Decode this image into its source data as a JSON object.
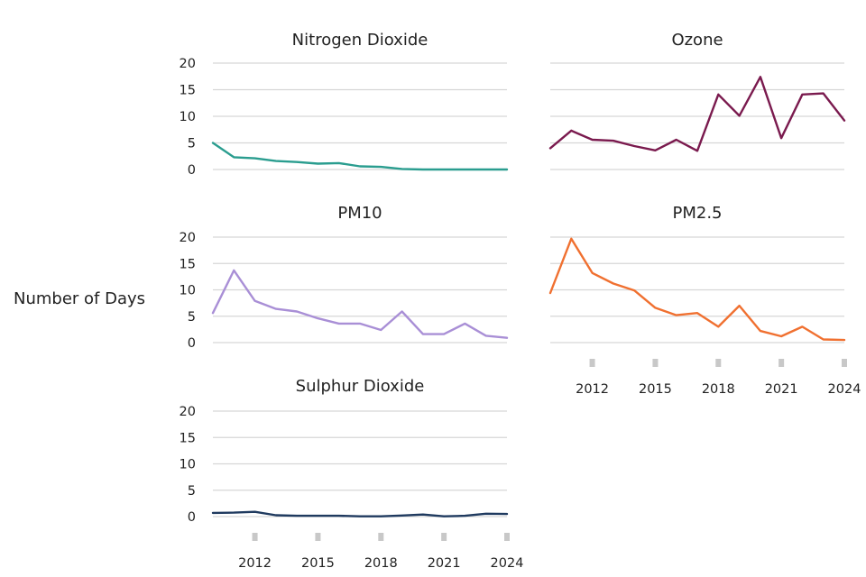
{
  "chart_data": {
    "type": "line",
    "ylabel": "Number of Days",
    "ylim": [
      0,
      20
    ],
    "yticks": [
      0,
      5,
      10,
      15,
      20
    ],
    "xlim": [
      2010,
      2024
    ],
    "xticks": [
      2012,
      2015,
      2018,
      2021,
      2024
    ],
    "grid": "horizontal",
    "x": [
      2010,
      2011,
      2012,
      2013,
      2014,
      2015,
      2016,
      2017,
      2018,
      2019,
      2020,
      2021,
      2022,
      2023,
      2024
    ],
    "panels": [
      {
        "title": "Nitrogen Dioxide",
        "color": "#2a9d8f",
        "values": [
          5.0,
          2.3,
          2.1,
          1.6,
          1.4,
          1.1,
          1.2,
          0.6,
          0.5,
          0.1,
          0.0,
          0.0,
          0.0,
          0.0,
          0.0
        ]
      },
      {
        "title": "Ozone",
        "color": "#7a1a4e",
        "values": [
          4.0,
          7.3,
          5.6,
          5.4,
          4.4,
          3.6,
          5.6,
          3.5,
          14.1,
          10.1,
          17.4,
          5.9,
          14.1,
          14.3,
          9.2
        ]
      },
      {
        "title": "PM10",
        "color": "#a98fd6",
        "values": [
          5.6,
          13.7,
          7.9,
          6.4,
          5.9,
          4.6,
          3.6,
          3.6,
          2.4,
          5.9,
          1.6,
          1.6,
          3.6,
          1.3,
          0.9
        ]
      },
      {
        "title": "PM2.5",
        "color": "#f07030",
        "values": [
          9.4,
          19.7,
          13.2,
          11.2,
          9.9,
          6.6,
          5.2,
          5.6,
          3.0,
          7.0,
          2.2,
          1.2,
          3.0,
          0.6,
          0.5
        ]
      },
      {
        "title": "Sulphur Dioxide",
        "color": "#1f3a5f",
        "values": [
          0.7,
          0.75,
          0.9,
          0.25,
          0.15,
          0.15,
          0.15,
          0.05,
          0.05,
          0.2,
          0.4,
          0.05,
          0.15,
          0.55,
          0.5
        ]
      }
    ]
  }
}
